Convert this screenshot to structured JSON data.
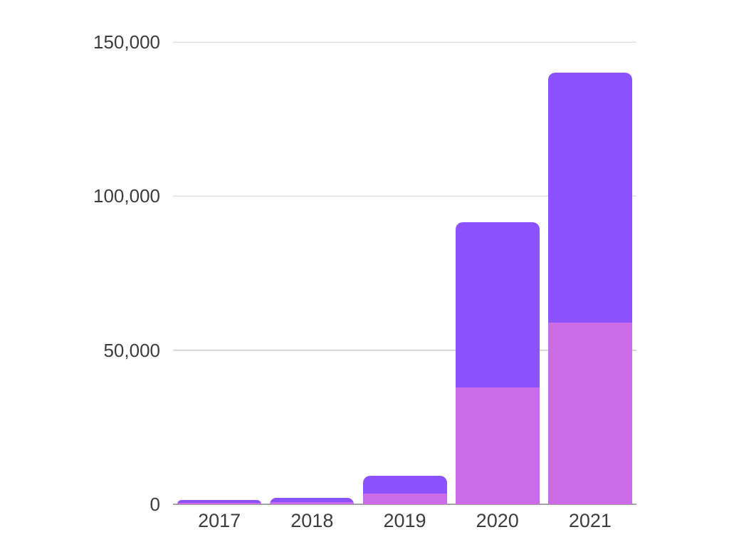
{
  "chart_data": {
    "type": "bar",
    "stacked": true,
    "title": "",
    "xlabel": "",
    "ylabel": "",
    "categories": [
      "2017",
      "2018",
      "2019",
      "2020",
      "2021"
    ],
    "series": [
      {
        "name": "pink",
        "color": "#cb6ce6",
        "values": [
          500,
          700,
          3500,
          37800,
          59000
        ]
      },
      {
        "name": "purple",
        "color": "#8c52ff",
        "values": [
          1000,
          1300,
          5700,
          53700,
          81000
        ]
      }
    ],
    "totals": [
      1500,
      2000,
      9200,
      91500,
      140000
    ],
    "ylim": [
      0,
      150000
    ],
    "yticks": [
      0,
      50000,
      100000,
      150000
    ],
    "ytick_labels": [
      "0",
      "50,000",
      "100,000",
      "150,000"
    ],
    "grid": true,
    "legend": false,
    "colors": {
      "background": "#ffffff",
      "gridline": "#d6d6d6",
      "axis_line": "#a3a3a3",
      "label_text": "#3d3d3d"
    }
  }
}
